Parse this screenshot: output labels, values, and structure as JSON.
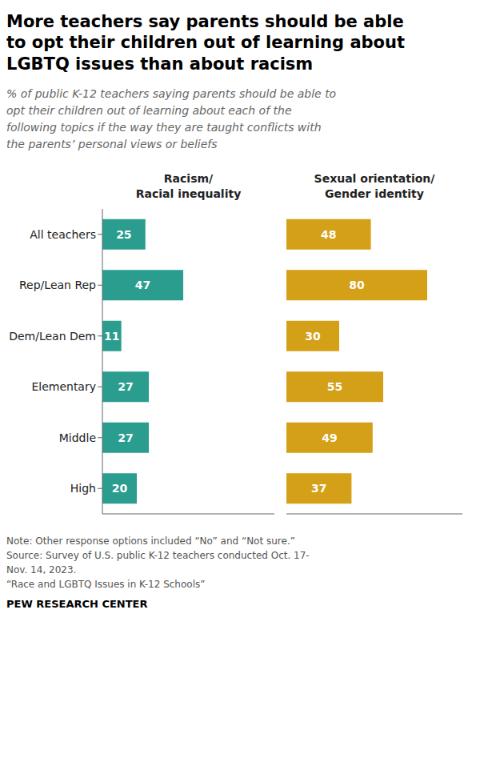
{
  "chart_data": {
    "type": "bar",
    "title": "More teachers say parents should be able\nto opt their children out of learning about\nLGBTQ issues than about racism",
    "subtitle": "% of public K-12 teachers saying parents should be able to\nopt their children out of learning about each of the\nfollowing topics if the way they are taught conflicts with\nthe parents’ personal views or beliefs",
    "categories": [
      "All teachers",
      "Rep/Lean Rep",
      "Dem/Lean Dem",
      "Elementary",
      "Middle",
      "High"
    ],
    "series": [
      {
        "name": "Racism/\nRacial inequality",
        "color": "#2a9d8f",
        "values": [
          25,
          47,
          11,
          27,
          27,
          20
        ]
      },
      {
        "name": "Sexual orientation/\nGender identity",
        "color": "#d4a017",
        "values": [
          48,
          80,
          30,
          55,
          49,
          37
        ]
      }
    ],
    "orientation": "horizontal",
    "xlim": [
      0,
      100
    ],
    "data_labels": true,
    "tick_labels": "y",
    "annotations": [
      "Note: Other response options included “No” and “Not sure.”\nSource: Survey of U.S. public K-12 teachers conducted Oct. 17-\nNov. 14, 2023.\n“Race and LGBTQ Issues in K-12 Schools”",
      "PEW RESEARCH CENTER"
    ]
  }
}
